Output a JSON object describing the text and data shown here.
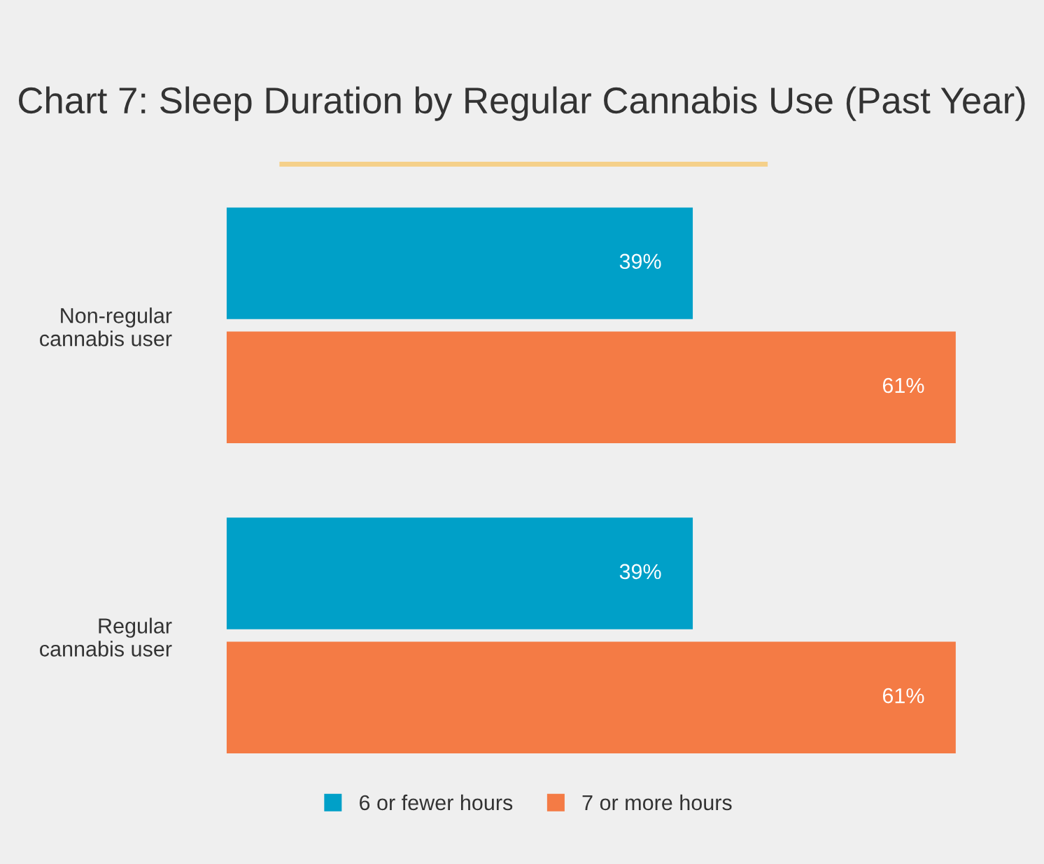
{
  "chart_data": {
    "type": "bar",
    "orientation": "horizontal",
    "title": "Chart 7: Sleep Duration by Regular Cannabis Use (Past Year)",
    "categories": [
      "Non-regular cannabis user",
      "Regular cannabis user"
    ],
    "series": [
      {
        "name": "6 or fewer hours",
        "color": "#00a0c8",
        "values": [
          39,
          39
        ],
        "value_labels": [
          "39%",
          "39%"
        ]
      },
      {
        "name": "7 or more hours",
        "color": "#f47b45",
        "values": [
          61,
          61
        ],
        "value_labels": [
          "61%",
          "61%"
        ]
      }
    ],
    "legend": "bottom",
    "grid": false
  }
}
